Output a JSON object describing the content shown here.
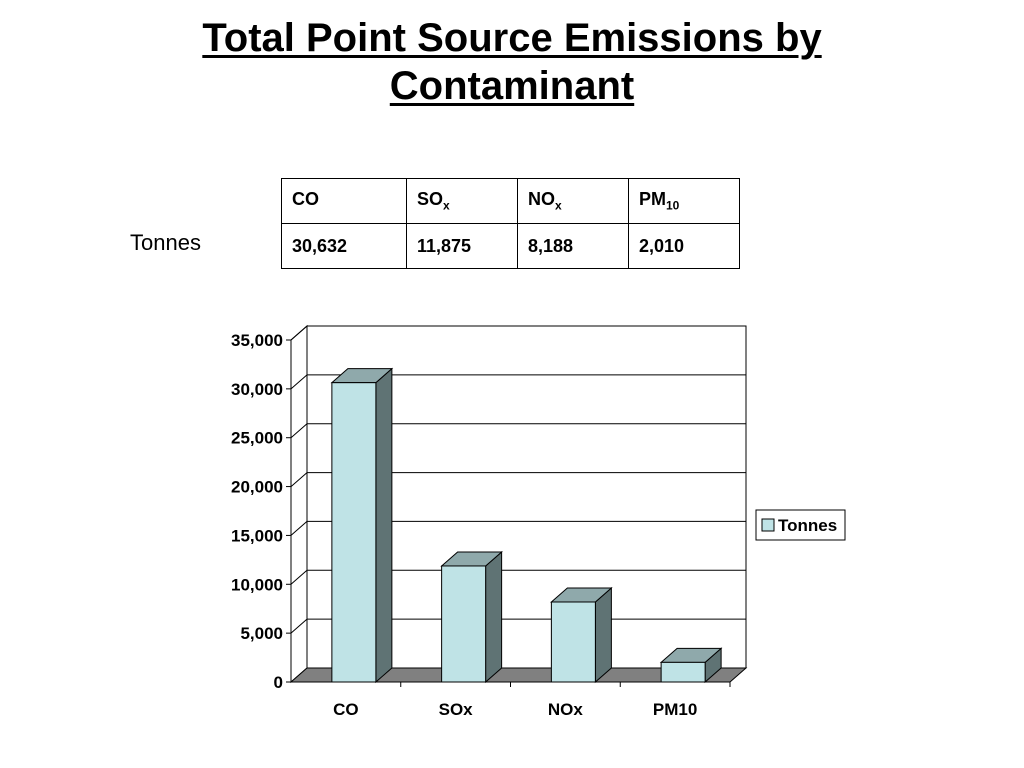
{
  "slide": {
    "title_line1": "Total Point Source Emissions by",
    "title_line2": "Contaminant"
  },
  "table": {
    "row_label": "Tonnes",
    "headers": [
      {
        "main": "CO",
        "sub": ""
      },
      {
        "main": "SO",
        "sub": "x"
      },
      {
        "main": "NO",
        "sub": "x"
      },
      {
        "main": "PM",
        "sub": "10"
      }
    ],
    "values": [
      "30,632",
      "11,875",
      "8,188",
      "2,010"
    ]
  },
  "chart_data": {
    "type": "bar",
    "style": "3d-column",
    "title": "",
    "xlabel": "",
    "ylabel": "",
    "categories": [
      "CO",
      "SOx",
      "NOx",
      "PM10"
    ],
    "series": [
      {
        "name": "Tonnes",
        "values": [
          30632,
          11875,
          8188,
          2010
        ],
        "color": "#bfe3e6"
      }
    ],
    "ylim": [
      0,
      35000
    ],
    "yticks": [
      0,
      5000,
      10000,
      15000,
      20000,
      25000,
      30000,
      35000
    ],
    "ytick_labels": [
      "0",
      "5,000",
      "10,000",
      "15,000",
      "20,000",
      "25,000",
      "30,000",
      "35,000"
    ],
    "grid": true,
    "legend_position": "right",
    "colors": {
      "bar_front": "#bfe3e6",
      "bar_side": "#5f7374",
      "bar_top": "#8fa9ab",
      "floor": "#808080",
      "gridline": "#000000"
    }
  }
}
